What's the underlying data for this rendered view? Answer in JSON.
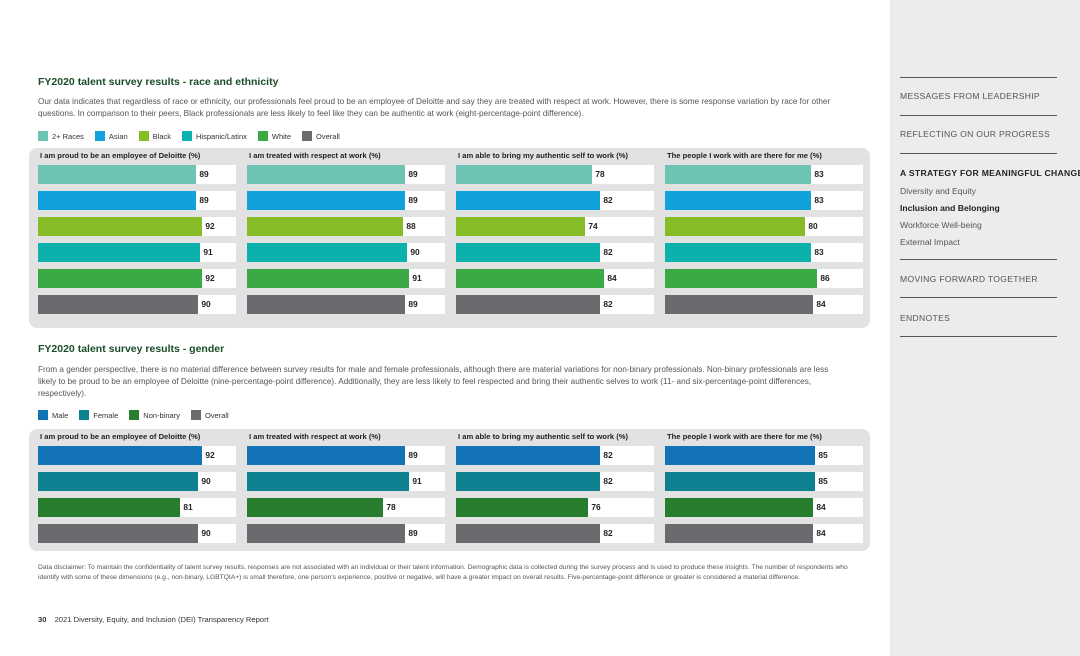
{
  "colors": {
    "2plus": "#6dc4b4",
    "asian": "#11a2dc",
    "black": "#86bc25",
    "hispanic": "#0db1ab",
    "white": "#3ba944",
    "overall": "#6a6b6e",
    "male": "#1273b7",
    "female": "#0e8190",
    "nonbinary": "#277e2f"
  },
  "race": {
    "title": "FY2020 talent survey results - race and ethnicity",
    "desc": "Our data indicates that regardless of race or ethnicity, our professionals feel proud to be an employee of Deloitte and say they are treated with respect at work. However, there is some response variation by race for other questions. In comparison to their peers, Black professionals are less likely to feel like they can be authentic at work (eight-percentage-point difference).",
    "legend": [
      "2+ Races",
      "Asian",
      "Black",
      "Hispanic/Latinx",
      "White",
      "Overall"
    ]
  },
  "gender": {
    "title": "FY2020 talent survey results - gender",
    "desc": "From a gender perspective, there is no material difference between survey results for male and female professionals, although there are material variations for non-binary professionals. Non-binary professionals are less likely to be proud to be an employee of Deloitte (nine-percentage-point difference). Additionally, they are less likely to feel respected and bring their authentic selves to work (11- and six-percentage-point differences, respectively).",
    "legend": [
      "Male",
      "Female",
      "Non-binary",
      "Overall"
    ]
  },
  "chart_data": [
    {
      "type": "bar",
      "title": "FY2020 talent survey results - race and ethnicity",
      "categories": [
        "2+ Races",
        "Asian",
        "Black",
        "Hispanic/Latinx",
        "White",
        "Overall"
      ],
      "series": [
        {
          "name": "I am proud to be an employee of Deloitte (%)",
          "values": [
            89,
            89,
            92,
            91,
            92,
            90
          ]
        },
        {
          "name": "I am treated with respect at work (%)",
          "values": [
            89,
            89,
            88,
            90,
            91,
            89
          ]
        },
        {
          "name": "I am able to bring my authentic self to work (%)",
          "values": [
            78,
            82,
            74,
            82,
            84,
            82
          ]
        },
        {
          "name": "The people I work with are there for me (%)",
          "values": [
            83,
            83,
            80,
            83,
            86,
            84
          ]
        }
      ]
    },
    {
      "type": "bar",
      "title": "FY2020 talent survey results - gender",
      "categories": [
        "Male",
        "Female",
        "Non-binary",
        "Overall"
      ],
      "series": [
        {
          "name": "I am proud to be an employee of Deloitte (%)",
          "values": [
            92,
            90,
            81,
            90
          ]
        },
        {
          "name": "I am treated with respect at work (%)",
          "values": [
            89,
            91,
            78,
            89
          ]
        },
        {
          "name": "I am able to bring my authentic self to work (%)",
          "values": [
            82,
            82,
            76,
            82
          ]
        },
        {
          "name": "The people I work with are there for me (%)",
          "values": [
            85,
            85,
            84,
            84
          ]
        }
      ]
    }
  ],
  "disclaimer": "Data disclaimer: To maintain the confidentiality of talent survey results, responses are not associated with an individual or their talent information. Demographic data is collected during the survey process and is used to produce these insights. The number of respondents who identify with some of these dimensions (e.g., non-binary, LGBTQIA+) is small therefore, one person's experience, positive or negative, will have a greater impact on overall results. Five-percentage-point difference or greater is considered a material difference.",
  "footer": {
    "page": "30",
    "title": "2021 Diversity, Equity, and Inclusion (DEI) Transparency Report"
  },
  "nav": {
    "leadership": "MESSAGES FROM LEADERSHIP",
    "progress": "REFLECTING ON OUR PROGRESS",
    "strategy": "A STRATEGY FOR MEANINGFUL CHANGE",
    "sub1": "Diversity and Equity",
    "sub2": "Inclusion and Belonging",
    "sub3": "Workforce Well-being",
    "sub4": "External Impact",
    "forward": "MOVING FORWARD TOGETHER",
    "endnotes": "ENDNOTES"
  }
}
